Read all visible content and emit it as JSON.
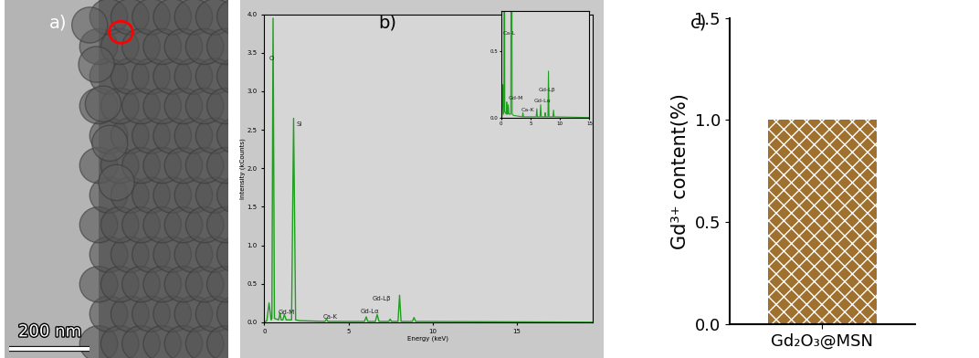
{
  "chart_data": [
    {
      "type": "image",
      "panel_label": "a)",
      "scale_bar": "200 nm"
    },
    {
      "type": "line",
      "panel_label": "b)",
      "x_label": "Energy (keV)",
      "y_label": "Intensity (kCounts)",
      "color": "#1f9e1f",
      "x": [
        0,
        0.15,
        0.28,
        0.4,
        0.45,
        0.52,
        0.6,
        0.85,
        0.93,
        1.0,
        1.1,
        1.19,
        1.3,
        1.62,
        1.74,
        1.86,
        2.1,
        3.6,
        3.69,
        3.78,
        5.95,
        6.06,
        6.15,
        6.6,
        6.71,
        6.82,
        7.4,
        7.48,
        7.56,
        7.95,
        8.04,
        8.13,
        8.8,
        8.9,
        9.0,
        19.5
      ],
      "values": [
        0,
        0.02,
        0.25,
        0.03,
        0.05,
        3.95,
        0.05,
        0.03,
        0.12,
        0.03,
        0.03,
        0.1,
        0.03,
        0.03,
        2.65,
        0.03,
        0.02,
        0.01,
        0.04,
        0.01,
        0.01,
        0.07,
        0.01,
        0.01,
        0.1,
        0.01,
        0.01,
        0.04,
        0.01,
        0.01,
        0.35,
        0.01,
        0.01,
        0.06,
        0.01,
        0.0
      ],
      "xlim": [
        0,
        19.5
      ],
      "ylim": [
        0,
        4.0
      ],
      "xticks": [
        0,
        5,
        10,
        15
      ],
      "yticks": [
        {
          "value": 0,
          "label": "0.0"
        },
        0.5,
        {
          "value": 1,
          "label": "1.0"
        },
        1.5,
        {
          "value": 2,
          "label": "2.0"
        },
        2.5,
        {
          "value": 3,
          "label": "3.0"
        },
        3.5,
        {
          "value": 4,
          "label": "4.0"
        }
      ],
      "annotations": [
        {
          "text": "O",
          "x": 0.3,
          "y": 3.4
        },
        {
          "text": "Si",
          "x": 1.9,
          "y": 2.55
        },
        {
          "text": "Gd-M",
          "x": 0.8,
          "y": 0.1
        },
        {
          "text": "Ca-K",
          "x": 3.5,
          "y": 0.05
        },
        {
          "text": "Gd-Lα",
          "x": 5.7,
          "y": 0.12
        },
        {
          "text": "Gd-Lβ",
          "x": 6.4,
          "y": 0.28
        }
      ],
      "inset": {
        "xlim": [
          0,
          15
        ],
        "ylim": [
          0,
          0.8
        ],
        "xticks": [
          0,
          5,
          10,
          15
        ],
        "yticks": [
          {
            "value": 0,
            "label": "0.0"
          },
          0.5
        ],
        "annotations": [
          {
            "text": "Ca-L",
            "x": 0.3,
            "y": 0.62
          },
          {
            "text": "Gd-M",
            "x": 1.2,
            "y": 0.14
          },
          {
            "text": "Ca-K",
            "x": 3.4,
            "y": 0.05
          },
          {
            "text": "Gd-Lα",
            "x": 5.6,
            "y": 0.12
          },
          {
            "text": "Gd-Lβ",
            "x": 6.3,
            "y": 0.2
          }
        ]
      }
    },
    {
      "type": "bar",
      "panel_label": "c)",
      "y_label": "Gd³⁺ content(%)",
      "categories": [
        "Gd₂O₃@MSN"
      ],
      "values": [
        1.0
      ],
      "color": "#a0702e",
      "ylim": [
        0,
        1.5
      ],
      "yticks": [
        {
          "value": 0,
          "label": "0.0"
        },
        0.5,
        {
          "value": 1,
          "label": "1.0"
        },
        1.5
      ]
    }
  ]
}
